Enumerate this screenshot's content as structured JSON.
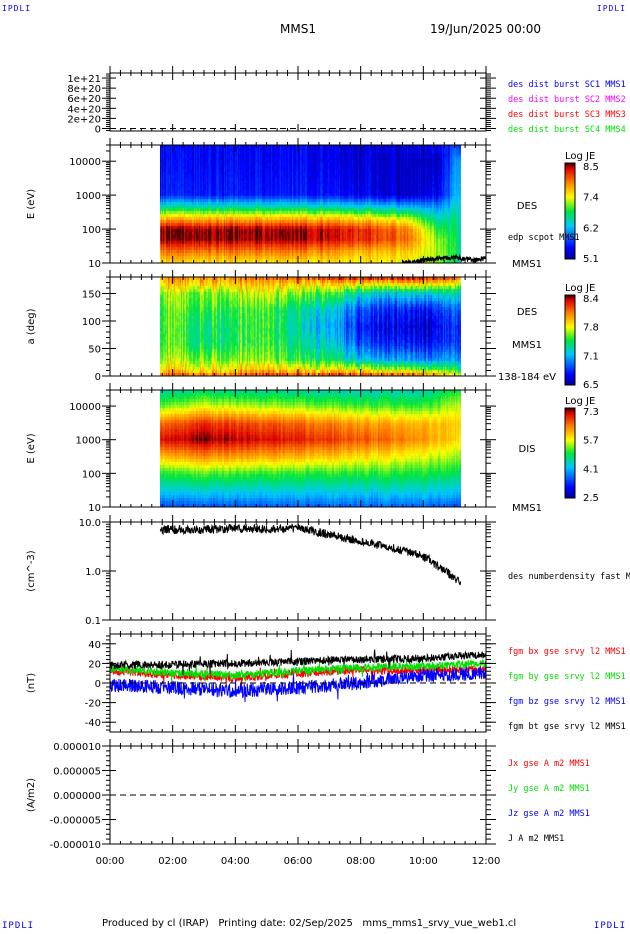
{
  "header": {
    "logo_left": "IPDLI",
    "logo_right": "IPDLI",
    "title": "MMS1",
    "date": "19/Jun/2025 00:00"
  },
  "footer": {
    "logo_left": "IPDLI",
    "logo_right": "IPDLI",
    "text": "Produced by cl (IRAP)   Printing date: 02/Sep/2025   mms_mms1_srvy_vue_web1.cl"
  },
  "x_axis": {
    "range_hours": [
      0,
      12
    ],
    "tick_labels": [
      "00:00",
      "02:00",
      "04:00",
      "06:00",
      "08:00",
      "10:00",
      "12:00"
    ]
  },
  "chart_data": [
    {
      "type": "line",
      "ylabel": "",
      "ylim": [
        -5e+19,
        1.1e+21
      ],
      "tick_labels": [
        "1e+21",
        "8e+20",
        "6e+20",
        "4e+20",
        "2e+20",
        "0"
      ],
      "tick_values": [
        1e+21,
        8e+20,
        6e+20,
        4e+20,
        2e+20,
        0
      ],
      "zero_line": true,
      "legend": [
        {
          "name": "des dist burst SC1 MMS1",
          "color": "#0000ff"
        },
        {
          "name": "des dist burst SC2 MMS2",
          "color": "#ff00ff"
        },
        {
          "name": "des dist burst SC3 MMS3",
          "color": "#ff0000"
        },
        {
          "name": "des dist burst SC4 MMS4",
          "color": "#00e000"
        }
      ],
      "series": []
    },
    {
      "type": "heatmap",
      "ylabel": "E (eV)",
      "yscale": "log",
      "ylim": [
        10,
        30000
      ],
      "tick_labels": [
        "10000",
        "1000",
        "100",
        "10"
      ],
      "tick_values": [
        10000,
        1000,
        100,
        10
      ],
      "instrument": "DES",
      "spacecraft": "MMS1",
      "colorbar": {
        "title": "Log JE",
        "tick_labels": [
          "8.5",
          "7.4",
          "6.2",
          "5.1"
        ],
        "range": [
          5.1,
          8.5
        ]
      },
      "time_range": [
        1.6,
        11.2
      ],
      "times": [
        1.6,
        4,
        6,
        8,
        9.5,
        10.5,
        11.2
      ],
      "energies": [
        10,
        20,
        50,
        100,
        200,
        500,
        1000,
        10000,
        30000
      ],
      "values": [
        [
          7.4,
          7.8,
          8.4,
          8.4,
          7.6,
          6.4,
          5.6,
          5.5,
          5.5
        ],
        [
          7.4,
          7.8,
          8.4,
          8.4,
          7.6,
          6.4,
          5.6,
          5.5,
          5.5
        ],
        [
          7.4,
          7.8,
          8.4,
          8.4,
          7.6,
          6.4,
          5.6,
          5.5,
          5.5
        ],
        [
          7.4,
          7.6,
          8.2,
          8.2,
          7.5,
          6.3,
          5.5,
          5.4,
          5.4
        ],
        [
          7.3,
          7.5,
          7.9,
          7.8,
          7.2,
          6.1,
          5.3,
          5.3,
          5.4
        ],
        [
          7.0,
          7.1,
          7.0,
          6.8,
          6.5,
          6.0,
          5.5,
          5.3,
          5.5
        ],
        [
          6.5,
          6.6,
          6.6,
          6.6,
          6.6,
          6.5,
          6.4,
          6.3,
          5.8
        ]
      ],
      "overlay": {
        "name": "edp scpot MMS1",
        "color": "#000000",
        "points": [
          [
            9.3,
            10
          ],
          [
            9.8,
            11
          ],
          [
            10.2,
            13
          ],
          [
            10.7,
            15
          ],
          [
            11.2,
            14
          ],
          [
            11.6,
            12
          ],
          [
            12,
            14
          ]
        ]
      }
    },
    {
      "type": "heatmap",
      "ylabel": "a (deg)",
      "yscale": "linear",
      "ylim": [
        0,
        180
      ],
      "tick_labels": [
        "150",
        "100",
        "50",
        "0"
      ],
      "tick_values": [
        150,
        100,
        50,
        0
      ],
      "instrument": "DES",
      "spacecraft": "MMS1",
      "energy_band": "138-184 eV",
      "colorbar": {
        "title": "Log JE",
        "tick_labels": [
          "8.4",
          "7.8",
          "7.1",
          "6.5"
        ],
        "range": [
          6.5,
          8.4
        ]
      },
      "time_range": [
        1.6,
        11.2
      ],
      "times": [
        1.6,
        3,
        5,
        7,
        8,
        9,
        10,
        11.2
      ],
      "angles": [
        0,
        10,
        30,
        60,
        90,
        120,
        150,
        170,
        180
      ],
      "values": [
        [
          8.2,
          7.9,
          7.7,
          7.6,
          7.6,
          7.6,
          7.7,
          7.9,
          8.0
        ],
        [
          8.1,
          7.8,
          7.6,
          7.4,
          7.4,
          7.5,
          7.6,
          7.9,
          8.0
        ],
        [
          8.2,
          7.9,
          7.6,
          7.5,
          7.5,
          7.5,
          7.7,
          7.9,
          8.1
        ],
        [
          8.2,
          7.8,
          7.4,
          7.2,
          7.1,
          7.2,
          7.5,
          7.9,
          8.2
        ],
        [
          8.2,
          7.8,
          7.2,
          6.9,
          6.8,
          6.9,
          7.3,
          7.9,
          8.3
        ],
        [
          8.2,
          7.7,
          7.1,
          6.8,
          6.7,
          6.8,
          7.2,
          7.9,
          8.3
        ],
        [
          8.1,
          7.6,
          7.0,
          6.7,
          6.6,
          6.7,
          7.2,
          7.9,
          8.3
        ],
        [
          7.8,
          7.5,
          7.1,
          6.9,
          6.9,
          7.0,
          7.3,
          7.8,
          8.1
        ]
      ]
    },
    {
      "type": "heatmap",
      "ylabel": "E (eV)",
      "yscale": "log",
      "ylim": [
        10,
        30000
      ],
      "tick_labels": [
        "10000",
        "1000",
        "100",
        "10"
      ],
      "tick_values": [
        10000,
        1000,
        100,
        10
      ],
      "instrument": "DIS",
      "spacecraft": "MMS1",
      "colorbar": {
        "title": "Log JE",
        "tick_labels": [
          "7.3",
          "5.7",
          "4.1",
          "2.5"
        ],
        "range": [
          2.5,
          7.3
        ]
      },
      "time_range": [
        1.6,
        11.2
      ],
      "times": [
        1.6,
        3,
        6,
        8,
        10,
        11.2
      ],
      "energies": [
        10,
        30,
        100,
        300,
        1000,
        3000,
        10000,
        30000
      ],
      "values": [
        [
          3.5,
          4.3,
          5.0,
          6.0,
          7.0,
          6.5,
          5.2,
          4.5
        ],
        [
          3.5,
          4.3,
          5.1,
          6.2,
          7.2,
          6.8,
          5.5,
          4.6
        ],
        [
          3.6,
          4.3,
          5.0,
          6.0,
          6.9,
          6.5,
          5.3,
          4.5
        ],
        [
          3.6,
          4.3,
          5.0,
          5.8,
          6.6,
          6.2,
          5.1,
          4.4
        ],
        [
          3.6,
          4.3,
          4.9,
          5.5,
          6.2,
          6.0,
          5.0,
          4.4
        ],
        [
          3.5,
          4.2,
          4.8,
          5.3,
          5.8,
          5.9,
          5.5,
          5.0
        ]
      ]
    },
    {
      "type": "line",
      "ylabel": "(cm^-3)",
      "yscale": "log",
      "ylim": [
        0.1,
        10
      ],
      "tick_labels": [
        "10.0",
        "1.0",
        "0.1"
      ],
      "tick_values": [
        10,
        1,
        0.1
      ],
      "legend": [
        {
          "name": "des numberdensity fast M",
          "color": "#000000"
        }
      ],
      "series": [
        {
          "name": "des numberdensity fast M",
          "color": "#000000",
          "points": [
            [
              1.6,
              7
            ],
            [
              3,
              7
            ],
            [
              4,
              7.5
            ],
            [
              5,
              7
            ],
            [
              6,
              7.5
            ],
            [
              7,
              5.5
            ],
            [
              8,
              4
            ],
            [
              8.5,
              3.5
            ],
            [
              9,
              3
            ],
            [
              10,
              2
            ],
            [
              10.5,
              1.2
            ],
            [
              11,
              0.7
            ],
            [
              11.2,
              0.6
            ]
          ]
        }
      ]
    },
    {
      "type": "line",
      "ylabel": "(nT)",
      "ylim": [
        -50,
        50
      ],
      "tick_labels": [
        "40",
        "20",
        "0",
        "-20",
        "-40"
      ],
      "tick_values": [
        40,
        20,
        0,
        -20,
        -40
      ],
      "zero_line": true,
      "legend": [
        {
          "name": "fgm bx gse srvy l2 MMS1",
          "color": "#ff0000"
        },
        {
          "name": "fgm by gse srvy l2 MMS1",
          "color": "#00e000"
        },
        {
          "name": "fgm bz gse srvy l2 MMS1",
          "color": "#0000ff"
        },
        {
          "name": "fgm bt gse srvy l2 MMS1",
          "color": "#000000"
        }
      ],
      "series": [
        {
          "name": "fgm bx gse srvy l2 MMS1",
          "color": "#ff0000",
          "points": [
            [
              0,
              12
            ],
            [
              2,
              8
            ],
            [
              4,
              5
            ],
            [
              6,
              10
            ],
            [
              8,
              13
            ],
            [
              10,
              13
            ],
            [
              12,
              14
            ]
          ]
        },
        {
          "name": "fgm by gse srvy l2 MMS1",
          "color": "#00e000",
          "points": [
            [
              0,
              15
            ],
            [
              2,
              10
            ],
            [
              4,
              8
            ],
            [
              6,
              12
            ],
            [
              8,
              16
            ],
            [
              10,
              17
            ],
            [
              12,
              20
            ]
          ]
        },
        {
          "name": "fgm bz gse srvy l2 MMS1",
          "color": "#0000ff",
          "points": [
            [
              0,
              -2
            ],
            [
              2,
              -5
            ],
            [
              4,
              -8
            ],
            [
              6,
              -5
            ],
            [
              8,
              0
            ],
            [
              10,
              8
            ],
            [
              12,
              10
            ]
          ]
        },
        {
          "name": "fgm bt gse srvy l2 MMS1",
          "color": "#000000",
          "points": [
            [
              0,
              18
            ],
            [
              2,
              19
            ],
            [
              4,
              20
            ],
            [
              6,
              22
            ],
            [
              8,
              24
            ],
            [
              10,
              25
            ],
            [
              12,
              29
            ]
          ]
        }
      ]
    },
    {
      "type": "line",
      "ylabel": "(A/m2)",
      "ylim": [
        -1e-05,
        1e-05
      ],
      "tick_labels": [
        "0.000010",
        "0.000005",
        "0.000000",
        "-0.000005",
        "-0.000010"
      ],
      "tick_values": [
        1e-05,
        5e-06,
        0,
        -5e-06,
        -1e-05
      ],
      "zero_line": true,
      "legend": [
        {
          "name": "Jx gse A m2 MMS1",
          "color": "#ff0000"
        },
        {
          "name": "Jy gse A m2 MMS1",
          "color": "#00e000"
        },
        {
          "name": "Jz gse A m2 MMS1",
          "color": "#0000ff"
        },
        {
          "name": "J A m2 MMS1",
          "color": "#000000"
        }
      ],
      "series": []
    }
  ]
}
